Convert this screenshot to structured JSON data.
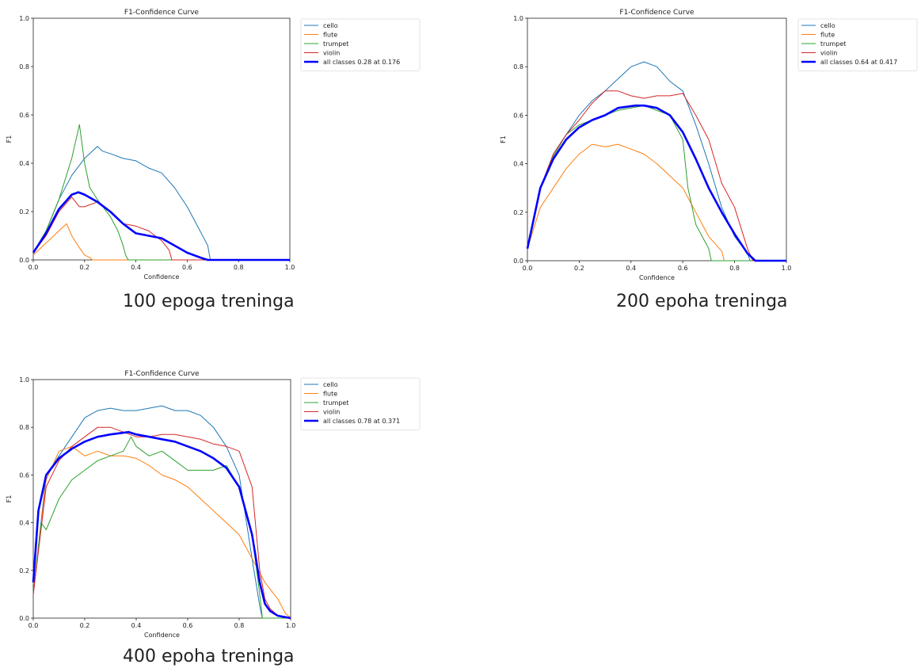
{
  "colors": {
    "cello": "#1f77b4",
    "flute": "#ff7f0e",
    "trumpet": "#2ca02c",
    "violin": "#d62728",
    "all": "#0000ff"
  },
  "chart_data": [
    {
      "type": "line",
      "title": "F1-Confidence Curve",
      "caption": "100 epoga treninga",
      "xlabel": "Confidence",
      "ylabel": "F1",
      "xlim": [
        0,
        1
      ],
      "ylim": [
        0,
        1
      ],
      "xticks": [
        "0.0",
        "0.2",
        "0.4",
        "0.6",
        "0.8",
        "1.0"
      ],
      "yticks": [
        "0.0",
        "0.2",
        "0.4",
        "0.6",
        "0.8",
        "1.0"
      ],
      "legend_position": "outside-right",
      "series": [
        {
          "name": "cello",
          "color": "cello",
          "x": [
            0,
            0.05,
            0.1,
            0.15,
            0.2,
            0.25,
            0.27,
            0.3,
            0.35,
            0.4,
            0.45,
            0.5,
            0.55,
            0.6,
            0.65,
            0.68,
            0.69,
            1.0
          ],
          "y": [
            0.03,
            0.12,
            0.25,
            0.35,
            0.42,
            0.47,
            0.45,
            0.44,
            0.42,
            0.41,
            0.38,
            0.36,
            0.3,
            0.22,
            0.12,
            0.06,
            0,
            0
          ]
        },
        {
          "name": "flute",
          "color": "flute",
          "x": [
            0,
            0.05,
            0.1,
            0.13,
            0.15,
            0.18,
            0.2,
            0.22,
            0.23,
            1.0
          ],
          "y": [
            0.02,
            0.07,
            0.12,
            0.15,
            0.1,
            0.05,
            0.02,
            0.01,
            0,
            0
          ]
        },
        {
          "name": "trumpet",
          "color": "trumpet",
          "x": [
            0,
            0.05,
            0.1,
            0.15,
            0.18,
            0.2,
            0.22,
            0.25,
            0.3,
            0.33,
            0.35,
            0.36,
            0.37,
            1.0
          ],
          "y": [
            0.03,
            0.12,
            0.25,
            0.42,
            0.56,
            0.4,
            0.3,
            0.25,
            0.18,
            0.12,
            0.06,
            0.02,
            0,
            0
          ]
        },
        {
          "name": "violin",
          "color": "violin",
          "x": [
            0,
            0.05,
            0.1,
            0.15,
            0.18,
            0.2,
            0.25,
            0.3,
            0.35,
            0.4,
            0.45,
            0.5,
            0.53,
            0.54,
            1.0
          ],
          "y": [
            0.03,
            0.1,
            0.2,
            0.26,
            0.22,
            0.22,
            0.24,
            0.2,
            0.15,
            0.14,
            0.12,
            0.08,
            0.04,
            0,
            0
          ]
        },
        {
          "name": "all classes 0.28 at 0.176",
          "color": "all",
          "bold": true,
          "x": [
            0,
            0.05,
            0.1,
            0.15,
            0.176,
            0.2,
            0.25,
            0.3,
            0.35,
            0.4,
            0.45,
            0.5,
            0.55,
            0.6,
            0.65,
            0.68,
            1.0
          ],
          "y": [
            0.03,
            0.11,
            0.21,
            0.27,
            0.28,
            0.27,
            0.24,
            0.2,
            0.15,
            0.11,
            0.1,
            0.09,
            0.06,
            0.03,
            0.01,
            0,
            0
          ]
        }
      ]
    },
    {
      "type": "line",
      "title": "F1-Confidence Curve",
      "caption": "200 epoha treninga",
      "xlabel": "Confidence",
      "ylabel": "F1",
      "xlim": [
        0,
        1
      ],
      "ylim": [
        0,
        1
      ],
      "xticks": [
        "0.0",
        "0.2",
        "0.4",
        "0.6",
        "0.8",
        "1.0"
      ],
      "yticks": [
        "0.0",
        "0.2",
        "0.4",
        "0.6",
        "0.8",
        "1.0"
      ],
      "legend_position": "outside-right",
      "series": [
        {
          "name": "cello",
          "color": "cello",
          "x": [
            0,
            0.05,
            0.1,
            0.15,
            0.2,
            0.25,
            0.3,
            0.35,
            0.4,
            0.45,
            0.5,
            0.55,
            0.6,
            0.65,
            0.7,
            0.75,
            0.8,
            0.85,
            0.86,
            1.0
          ],
          "y": [
            0.05,
            0.3,
            0.44,
            0.52,
            0.6,
            0.66,
            0.7,
            0.75,
            0.8,
            0.82,
            0.8,
            0.74,
            0.7,
            0.56,
            0.4,
            0.22,
            0.1,
            0.03,
            0,
            0
          ]
        },
        {
          "name": "flute",
          "color": "flute",
          "x": [
            0,
            0.05,
            0.1,
            0.15,
            0.2,
            0.25,
            0.3,
            0.35,
            0.4,
            0.45,
            0.5,
            0.55,
            0.6,
            0.65,
            0.7,
            0.75,
            0.76,
            1.0
          ],
          "y": [
            0.05,
            0.22,
            0.3,
            0.38,
            0.44,
            0.48,
            0.47,
            0.48,
            0.46,
            0.44,
            0.4,
            0.35,
            0.3,
            0.2,
            0.1,
            0.04,
            0,
            0
          ]
        },
        {
          "name": "trumpet",
          "color": "trumpet",
          "x": [
            0,
            0.05,
            0.1,
            0.15,
            0.2,
            0.25,
            0.3,
            0.35,
            0.4,
            0.45,
            0.5,
            0.55,
            0.6,
            0.62,
            0.65,
            0.7,
            0.71,
            1.0
          ],
          "y": [
            0.05,
            0.3,
            0.43,
            0.52,
            0.56,
            0.58,
            0.6,
            0.62,
            0.63,
            0.64,
            0.62,
            0.6,
            0.5,
            0.3,
            0.15,
            0.05,
            0,
            0
          ]
        },
        {
          "name": "violin",
          "color": "violin",
          "x": [
            0,
            0.05,
            0.1,
            0.15,
            0.2,
            0.25,
            0.3,
            0.35,
            0.4,
            0.45,
            0.5,
            0.55,
            0.6,
            0.65,
            0.7,
            0.75,
            0.8,
            0.85,
            0.87,
            1.0
          ],
          "y": [
            0.05,
            0.3,
            0.44,
            0.52,
            0.58,
            0.65,
            0.7,
            0.7,
            0.68,
            0.67,
            0.68,
            0.68,
            0.69,
            0.6,
            0.5,
            0.32,
            0.22,
            0.05,
            0,
            0
          ]
        },
        {
          "name": "all classes 0.64 at 0.417",
          "color": "all",
          "bold": true,
          "x": [
            0,
            0.05,
            0.1,
            0.15,
            0.2,
            0.25,
            0.3,
            0.35,
            0.417,
            0.45,
            0.5,
            0.55,
            0.6,
            0.65,
            0.7,
            0.75,
            0.8,
            0.85,
            0.88,
            1.0
          ],
          "y": [
            0.05,
            0.3,
            0.42,
            0.5,
            0.55,
            0.58,
            0.6,
            0.63,
            0.64,
            0.64,
            0.63,
            0.6,
            0.53,
            0.42,
            0.3,
            0.2,
            0.11,
            0.03,
            0,
            0
          ]
        }
      ]
    },
    {
      "type": "line",
      "title": "F1-Confidence Curve",
      "caption": "400 epoha treninga",
      "xlabel": "Confidence",
      "ylabel": "F1",
      "xlim": [
        0,
        1
      ],
      "ylim": [
        0,
        1
      ],
      "xticks": [
        "0.0",
        "0.2",
        "0.4",
        "0.6",
        "0.8",
        "1.0"
      ],
      "yticks": [
        "0.0",
        "0.2",
        "0.4",
        "0.6",
        "0.8",
        "1.0"
      ],
      "legend_position": "outside-right",
      "series": [
        {
          "name": "cello",
          "color": "cello",
          "x": [
            0,
            0.05,
            0.1,
            0.15,
            0.2,
            0.25,
            0.3,
            0.35,
            0.4,
            0.45,
            0.5,
            0.55,
            0.6,
            0.65,
            0.7,
            0.75,
            0.8,
            0.85,
            0.88,
            0.89,
            1.0
          ],
          "y": [
            0.1,
            0.6,
            0.68,
            0.76,
            0.84,
            0.87,
            0.88,
            0.87,
            0.87,
            0.88,
            0.89,
            0.87,
            0.87,
            0.85,
            0.8,
            0.72,
            0.6,
            0.25,
            0.05,
            0,
            0
          ]
        },
        {
          "name": "flute",
          "color": "flute",
          "x": [
            0,
            0.05,
            0.1,
            0.15,
            0.2,
            0.25,
            0.3,
            0.35,
            0.4,
            0.45,
            0.5,
            0.55,
            0.6,
            0.65,
            0.7,
            0.75,
            0.8,
            0.85,
            0.9,
            0.95,
            0.98,
            1.0
          ],
          "y": [
            0.1,
            0.58,
            0.7,
            0.72,
            0.68,
            0.7,
            0.68,
            0.68,
            0.67,
            0.64,
            0.6,
            0.58,
            0.55,
            0.5,
            0.45,
            0.4,
            0.35,
            0.25,
            0.15,
            0.08,
            0.02,
            0
          ]
        },
        {
          "name": "trumpet",
          "color": "trumpet",
          "x": [
            0,
            0.03,
            0.05,
            0.1,
            0.15,
            0.2,
            0.25,
            0.3,
            0.35,
            0.38,
            0.4,
            0.45,
            0.5,
            0.55,
            0.6,
            0.65,
            0.7,
            0.75,
            0.8,
            0.85,
            0.88,
            0.89,
            1.0
          ],
          "y": [
            0.1,
            0.4,
            0.37,
            0.5,
            0.58,
            0.62,
            0.66,
            0.68,
            0.7,
            0.76,
            0.72,
            0.68,
            0.7,
            0.66,
            0.62,
            0.62,
            0.62,
            0.64,
            0.55,
            0.35,
            0.1,
            0,
            0
          ]
        },
        {
          "name": "violin",
          "color": "violin",
          "x": [
            0,
            0.05,
            0.1,
            0.15,
            0.2,
            0.25,
            0.3,
            0.35,
            0.4,
            0.45,
            0.5,
            0.55,
            0.6,
            0.65,
            0.7,
            0.75,
            0.8,
            0.85,
            0.88,
            0.9,
            0.92,
            0.95,
            1.0
          ],
          "y": [
            0.1,
            0.55,
            0.66,
            0.72,
            0.76,
            0.8,
            0.8,
            0.78,
            0.76,
            0.76,
            0.77,
            0.77,
            0.76,
            0.75,
            0.73,
            0.72,
            0.7,
            0.55,
            0.2,
            0.08,
            0.04,
            0.01,
            0
          ]
        },
        {
          "name": "all classes 0.78 at 0.371",
          "color": "all",
          "bold": true,
          "x": [
            0,
            0.02,
            0.05,
            0.1,
            0.15,
            0.2,
            0.25,
            0.3,
            0.371,
            0.4,
            0.45,
            0.5,
            0.55,
            0.6,
            0.65,
            0.7,
            0.75,
            0.8,
            0.85,
            0.88,
            0.9,
            0.92,
            0.95,
            1.0
          ],
          "y": [
            0.15,
            0.45,
            0.6,
            0.67,
            0.71,
            0.74,
            0.76,
            0.77,
            0.78,
            0.77,
            0.76,
            0.75,
            0.74,
            0.72,
            0.7,
            0.67,
            0.63,
            0.55,
            0.35,
            0.15,
            0.06,
            0.03,
            0.01,
            0
          ]
        }
      ]
    }
  ]
}
